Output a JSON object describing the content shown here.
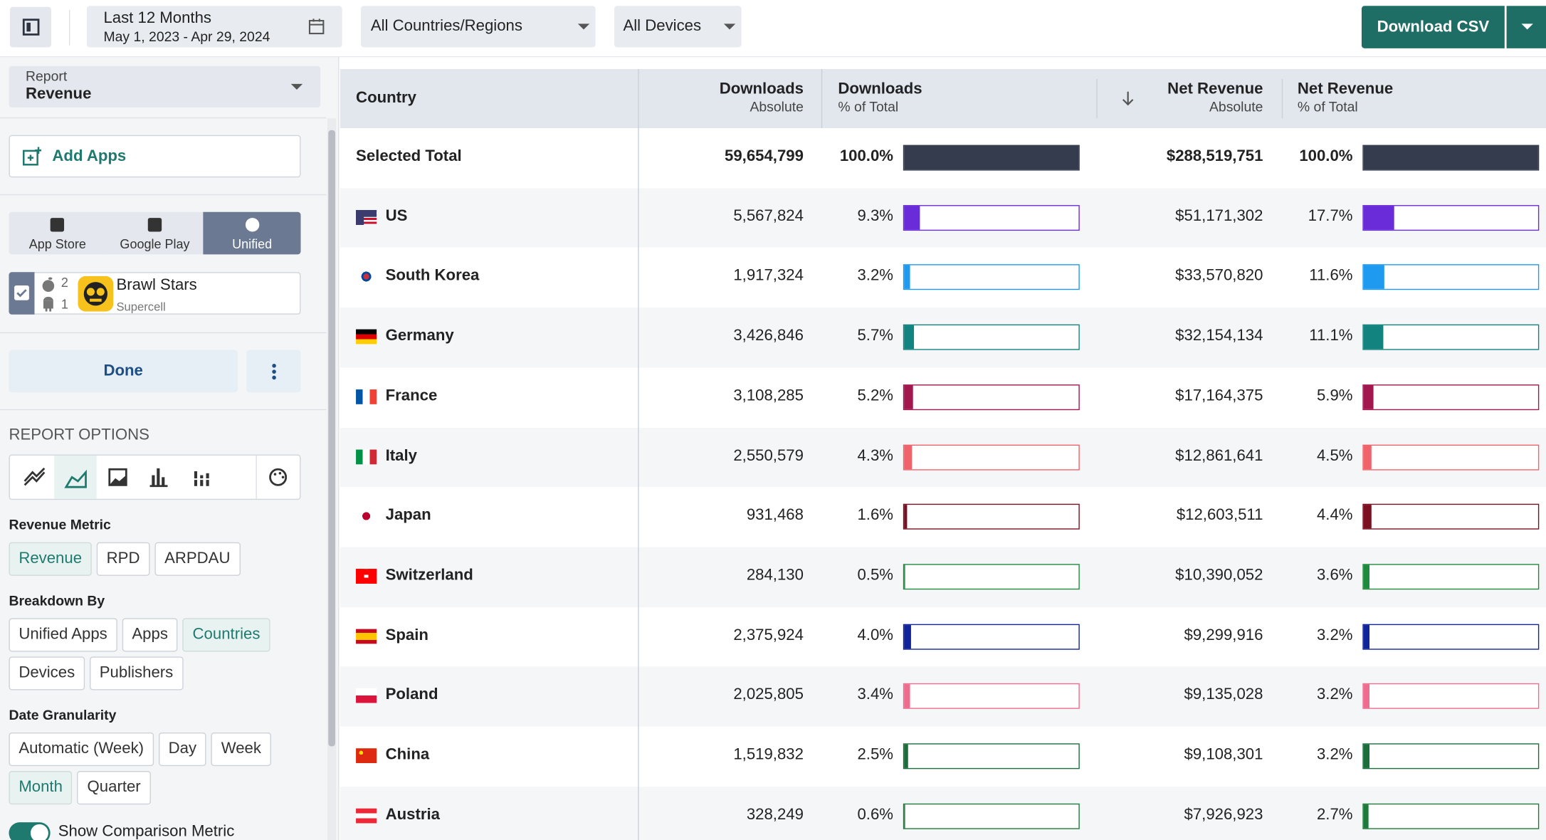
{
  "toolbar": {
    "date_range": "Last 12 Months",
    "date_detail": "May 1, 2023 - Apr 29, 2024",
    "country_filter": "All Countries/Regions",
    "device_filter": "All Devices",
    "download": "Download CSV"
  },
  "sidebar": {
    "report_label": "Report",
    "report_value": "Revenue",
    "add_apps": "Add Apps",
    "stores": [
      "App Store",
      "Google Play",
      "Unified"
    ],
    "selected_store": "Unified",
    "app": {
      "name": "Brawl Stars",
      "publisher": "Supercell",
      "ios_count": 2,
      "android_count": 1
    },
    "done": "Done",
    "options_title": "REPORT OPTIONS",
    "groups": [
      {
        "title": "Revenue Metric",
        "options": [
          "Revenue",
          "RPD",
          "ARPDAU"
        ],
        "selected": "Revenue"
      },
      {
        "title": "Breakdown By",
        "options": [
          "Unified Apps",
          "Apps",
          "Countries",
          "Devices",
          "Publishers"
        ],
        "selected": "Countries"
      },
      {
        "title": "Date Granularity",
        "options": [
          "Automatic (Week)",
          "Day",
          "Week",
          "Month",
          "Quarter"
        ],
        "selected": "Month"
      }
    ],
    "comparison": "Show Comparison Metric"
  },
  "table": {
    "columns": {
      "country": "Country",
      "downloads": "Downloads",
      "net_revenue": "Net Revenue",
      "absolute": "Absolute",
      "pct_of_total": "% of Total"
    },
    "total": {
      "country": "Selected Total",
      "downloads": "59,654,799",
      "downloads_pct": 100,
      "downloads_pct_label": "100.0%",
      "revenue": "$288,519,751",
      "revenue_pct": 100,
      "revenue_pct_label": "100.0%",
      "color": "#343c4e"
    },
    "rows": [
      {
        "country": "US",
        "downloads": "5,567,824",
        "downloads_pct": 9.3,
        "downloads_pct_label": "9.3%",
        "revenue": "$51,171,302",
        "revenue_pct": 17.7,
        "revenue_pct_label": "17.7%",
        "color": "#6a2bd9"
      },
      {
        "country": "South Korea",
        "downloads": "1,917,324",
        "downloads_pct": 3.2,
        "downloads_pct_label": "3.2%",
        "revenue": "$33,570,820",
        "revenue_pct": 11.6,
        "revenue_pct_label": "11.6%",
        "color": "#1e9bf0"
      },
      {
        "country": "Germany",
        "downloads": "3,426,846",
        "downloads_pct": 5.7,
        "downloads_pct_label": "5.7%",
        "revenue": "$32,154,134",
        "revenue_pct": 11.1,
        "revenue_pct_label": "11.1%",
        "color": "#138380"
      },
      {
        "country": "France",
        "downloads": "3,108,285",
        "downloads_pct": 5.2,
        "downloads_pct_label": "5.2%",
        "revenue": "$17,164,375",
        "revenue_pct": 5.9,
        "revenue_pct_label": "5.9%",
        "color": "#a3174f"
      },
      {
        "country": "Italy",
        "downloads": "2,550,579",
        "downloads_pct": 4.3,
        "downloads_pct_label": "4.3%",
        "revenue": "$12,861,641",
        "revenue_pct": 4.5,
        "revenue_pct_label": "4.5%",
        "color": "#f0636b"
      },
      {
        "country": "Japan",
        "downloads": "931,468",
        "downloads_pct": 1.6,
        "downloads_pct_label": "1.6%",
        "revenue": "$12,603,511",
        "revenue_pct": 4.4,
        "revenue_pct_label": "4.4%",
        "color": "#7a1020"
      },
      {
        "country": "Switzerland",
        "downloads": "284,130",
        "downloads_pct": 0.5,
        "downloads_pct_label": "0.5%",
        "revenue": "$10,390,052",
        "revenue_pct": 3.6,
        "revenue_pct_label": "3.6%",
        "color": "#1e8a3e"
      },
      {
        "country": "Spain",
        "downloads": "2,375,924",
        "downloads_pct": 4.0,
        "downloads_pct_label": "4.0%",
        "revenue": "$9,299,916",
        "revenue_pct": 3.2,
        "revenue_pct_label": "3.2%",
        "color": "#12249a"
      },
      {
        "country": "Poland",
        "downloads": "2,025,805",
        "downloads_pct": 3.4,
        "downloads_pct_label": "3.4%",
        "revenue": "$9,135,028",
        "revenue_pct": 3.2,
        "revenue_pct_label": "3.2%",
        "color": "#ef6c8e"
      },
      {
        "country": "China",
        "downloads": "1,519,832",
        "downloads_pct": 2.5,
        "downloads_pct_label": "2.5%",
        "revenue": "$9,108,301",
        "revenue_pct": 3.2,
        "revenue_pct_label": "3.2%",
        "color": "#1b6e3a"
      },
      {
        "country": "Austria",
        "downloads": "328,249",
        "downloads_pct": 0.6,
        "downloads_pct_label": "0.6%",
        "revenue": "$7,926,923",
        "revenue_pct": 2.7,
        "revenue_pct_label": "2.7%",
        "color": "#1e7a3a"
      }
    ]
  }
}
